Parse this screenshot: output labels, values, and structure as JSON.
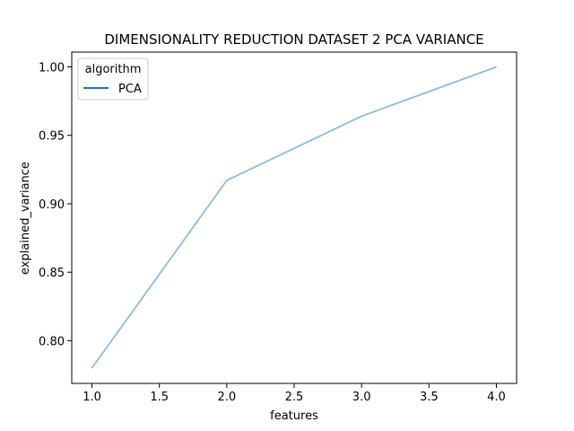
{
  "chart_data": {
    "type": "line",
    "title": "DIMENSIONALITY REDUCTION DATASET 2 PCA VARIANCE",
    "xlabel": "features",
    "ylabel": "explained_variance",
    "xlim": [
      0.85,
      4.15
    ],
    "ylim": [
      0.7688,
      1.0108
    ],
    "xticks": [
      1.0,
      1.5,
      2.0,
      2.5,
      3.0,
      3.5,
      4.0
    ],
    "xtick_labels": [
      "1.0",
      "1.5",
      "2.0",
      "2.5",
      "3.0",
      "3.5",
      "4.0"
    ],
    "yticks": [
      0.8,
      0.85,
      0.9,
      0.95,
      1.0
    ],
    "ytick_labels": [
      "0.80",
      "0.85",
      "0.90",
      "0.95",
      "1.00"
    ],
    "grid": false,
    "legend": {
      "title": "algorithm",
      "placement": "top-left"
    },
    "series": [
      {
        "name": "PCA",
        "x": [
          1,
          2,
          3,
          4
        ],
        "values": [
          0.78,
          0.917,
          0.964,
          1.0
        ],
        "line_color": "#8fbbd9",
        "legend_color": "#1f77b4"
      }
    ]
  }
}
